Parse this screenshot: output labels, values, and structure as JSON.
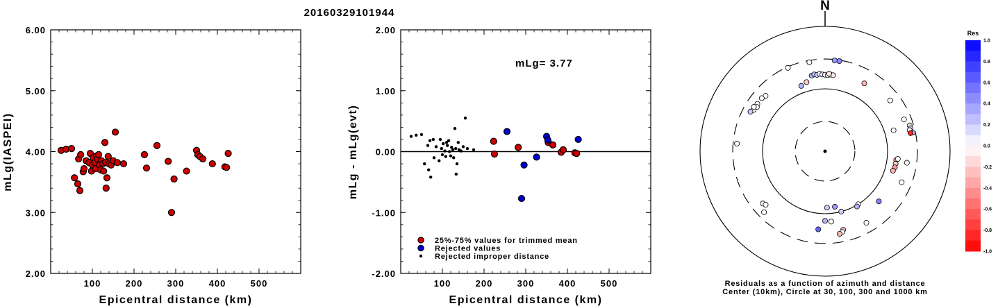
{
  "title": "20160329101944",
  "chart_data": [
    {
      "type": "scatter",
      "xlabel": "Epicentral distance (km)",
      "ylabel": "mLg(IASPEI)",
      "xlim": [
        0,
        600
      ],
      "ylim": [
        2.0,
        6.0
      ],
      "xticks": [
        "100",
        "200",
        "300",
        "400",
        "500"
      ],
      "yticks": [
        "2.00",
        "3.00",
        "4.00",
        "5.00",
        "6.00"
      ],
      "point_color": "#cc0000",
      "points": [
        [
          25,
          4.02
        ],
        [
          37,
          4.04
        ],
        [
          50,
          4.05
        ],
        [
          57,
          3.57
        ],
        [
          65,
          3.47
        ],
        [
          67,
          3.88
        ],
        [
          70,
          3.36
        ],
        [
          72,
          3.95
        ],
        [
          78,
          3.67
        ],
        [
          80,
          3.72
        ],
        [
          85,
          3.85
        ],
        [
          92,
          3.82
        ],
        [
          95,
          3.97
        ],
        [
          98,
          3.68
        ],
        [
          100,
          3.78
        ],
        [
          102,
          3.9
        ],
        [
          106,
          3.82
        ],
        [
          108,
          3.72
        ],
        [
          110,
          3.93
        ],
        [
          112,
          3.88
        ],
        [
          115,
          3.95
        ],
        [
          117,
          3.78
        ],
        [
          120,
          3.7
        ],
        [
          122,
          3.85
        ],
        [
          125,
          3.8
        ],
        [
          127,
          3.68
        ],
        [
          130,
          4.15
        ],
        [
          132,
          3.82
        ],
        [
          133,
          3.4
        ],
        [
          135,
          3.57
        ],
        [
          138,
          3.92
        ],
        [
          140,
          3.8
        ],
        [
          145,
          3.78
        ],
        [
          150,
          3.85
        ],
        [
          155,
          4.32
        ],
        [
          160,
          3.82
        ],
        [
          175,
          3.8
        ],
        [
          225,
          3.95
        ],
        [
          230,
          3.73
        ],
        [
          255,
          4.1
        ],
        [
          282,
          3.84
        ],
        [
          290,
          3.0
        ],
        [
          296,
          3.55
        ],
        [
          326,
          3.68
        ],
        [
          350,
          4.02
        ],
        [
          353,
          3.95
        ],
        [
          358,
          3.92
        ],
        [
          365,
          3.88
        ],
        [
          388,
          3.8
        ],
        [
          418,
          3.75
        ],
        [
          422,
          3.74
        ],
        [
          426,
          3.97
        ]
      ]
    },
    {
      "type": "scatter",
      "xlabel": "Epicentral distance (km)",
      "ylabel": "mLg - mLg(evt)",
      "xlim": [
        0,
        600
      ],
      "ylim": [
        -2.0,
        2.0
      ],
      "xticks": [
        "100",
        "200",
        "300",
        "400",
        "500"
      ],
      "yticks": [
        "-2.00",
        "-1.00",
        "0.00",
        "1.00",
        "2.00"
      ],
      "annotation": "mLg= 3.77",
      "reference_line": 0.0,
      "legend": [
        {
          "label": "25%-75% values for trimmed mean",
          "color": "#cc0000"
        },
        {
          "label": "Rejected values",
          "color": "#0000cc"
        },
        {
          "label": "Rejected improper distance",
          "color": "#000000"
        }
      ],
      "series": [
        {
          "name": "25%-75% values for trimmed mean",
          "color": "#cc0000",
          "size": "large",
          "points": [
            [
              223,
              0.17
            ],
            [
              225,
              -0.04
            ],
            [
              282,
              0.07
            ],
            [
              354,
              0.15
            ],
            [
              365,
              0.11
            ],
            [
              385,
              -0.01
            ],
            [
              390,
              0.03
            ],
            [
              418,
              -0.02
            ],
            [
              422,
              -0.03
            ]
          ]
        },
        {
          "name": "Rejected values",
          "color": "#0000cc",
          "size": "large",
          "points": [
            [
              255,
              0.33
            ],
            [
              290,
              -0.77
            ],
            [
              296,
              -0.22
            ],
            [
              326,
              -0.09
            ],
            [
              350,
              0.25
            ],
            [
              353,
              0.19
            ],
            [
              426,
              0.2
            ]
          ]
        },
        {
          "name": "Rejected improper distance",
          "color": "#000000",
          "size": "small",
          "points": [
            [
              25,
              0.25
            ],
            [
              37,
              0.27
            ],
            [
              50,
              0.28
            ],
            [
              57,
              -0.2
            ],
            [
              65,
              0.1
            ],
            [
              67,
              -0.3
            ],
            [
              70,
              0.18
            ],
            [
              72,
              -0.42
            ],
            [
              78,
              0.2
            ],
            [
              80,
              -0.1
            ],
            [
              85,
              0.08
            ],
            [
              92,
              -0.15
            ],
            [
              95,
              0.2
            ],
            [
              98,
              0.05
            ],
            [
              100,
              -0.05
            ],
            [
              102,
              0.13
            ],
            [
              106,
              0.01
            ],
            [
              108,
              -0.08
            ],
            [
              110,
              0.15
            ],
            [
              112,
              0.1
            ],
            [
              115,
              0.18
            ],
            [
              117,
              0.0
            ],
            [
              120,
              -0.07
            ],
            [
              122,
              0.07
            ],
            [
              125,
              0.03
            ],
            [
              127,
              -0.1
            ],
            [
              130,
              0.38
            ],
            [
              132,
              0.05
            ],
            [
              133,
              -0.37
            ],
            [
              135,
              -0.2
            ],
            [
              138,
              0.15
            ],
            [
              140,
              0.03
            ],
            [
              145,
              0.01
            ],
            [
              150,
              0.08
            ],
            [
              155,
              0.55
            ],
            [
              160,
              0.05
            ],
            [
              175,
              0.03
            ]
          ]
        }
      ]
    },
    {
      "type": "scatter",
      "subtype": "polar",
      "north_label": "N",
      "caption_line1": "Residuals as a function of azimuth and distance",
      "caption_line2": "Center (10km), Circle at 30, 100, 300 and 1000 km",
      "rings_km": [
        10,
        30,
        100,
        300,
        1000
      ],
      "colorbar_title": "Res",
      "colorbar_ticks": [
        "1.0",
        "0.8",
        "0.6",
        "0.4",
        "0.2",
        "0.0",
        "-0.2",
        "-0.4",
        "-0.6",
        "-0.8",
        "-1.0"
      ],
      "colorbar_range": [
        -1.0,
        1.0
      ],
      "points": [
        {
          "az": 9,
          "dist": 290,
          "res": 0.45
        },
        {
          "az": 6,
          "dist": 290,
          "res": 0.4
        },
        {
          "az": 350,
          "dist": 280,
          "res": 0.0
        },
        {
          "az": 336,
          "dist": 290,
          "res": 0.0
        },
        {
          "az": 350,
          "dist": 170,
          "res": 0.3
        },
        {
          "az": 352,
          "dist": 175,
          "res": 0.25
        },
        {
          "az": 354,
          "dist": 170,
          "res": 0.2
        },
        {
          "az": 356,
          "dist": 175,
          "res": 0.0
        },
        {
          "az": 358,
          "dist": 170,
          "res": 0.1
        },
        {
          "az": 0,
          "dist": 168,
          "res": 0.0
        },
        {
          "az": 2,
          "dist": 166,
          "res": 0.0
        },
        {
          "az": 4,
          "dist": 170,
          "res": 0.0
        },
        {
          "az": 6,
          "dist": 168,
          "res": -0.1
        },
        {
          "az": 3,
          "dist": 175,
          "res": -0.1
        },
        {
          "az": 345,
          "dist": 140,
          "res": -0.2
        },
        {
          "az": 340,
          "dist": 130,
          "res": 0.3
        },
        {
          "az": 313,
          "dist": 200,
          "res": 0.0
        },
        {
          "az": 310,
          "dist": 210,
          "res": 0.0
        },
        {
          "az": 305,
          "dist": 210,
          "res": 0.0
        },
        {
          "az": 303,
          "dist": 200,
          "res": 0.0
        },
        {
          "az": 300,
          "dist": 210,
          "res": 0.0
        },
        {
          "az": 302,
          "dist": 220,
          "res": 0.0
        },
        {
          "az": 298,
          "dist": 225,
          "res": 0.2
        },
        {
          "az": 275,
          "dist": 260,
          "res": 0.0
        },
        {
          "az": 30,
          "dist": 180,
          "res": -0.3
        },
        {
          "az": 52,
          "dist": 210,
          "res": 0.0
        },
        {
          "az": 68,
          "dist": 230,
          "res": 0.0
        },
        {
          "az": 73,
          "dist": 260,
          "res": -0.1
        },
        {
          "az": 75,
          "dist": 260,
          "res": 0.2
        },
        {
          "az": 76,
          "dist": 248,
          "res": 0.0
        },
        {
          "az": 78,
          "dist": 272,
          "res": 0.25
        },
        {
          "az": 78,
          "dist": 250,
          "res": -0.85
        },
        {
          "az": 73,
          "dist": 140,
          "res": 0.0
        },
        {
          "az": 97,
          "dist": 140,
          "res": -0.3
        },
        {
          "az": 100,
          "dist": 140,
          "res": -0.2
        },
        {
          "az": 96,
          "dist": 148,
          "res": 0.0
        },
        {
          "az": 103,
          "dist": 140,
          "res": -0.4
        },
        {
          "az": 106,
          "dist": 135,
          "res": -0.3
        },
        {
          "az": 98,
          "dist": 210,
          "res": 0.0
        },
        {
          "az": 112,
          "dist": 210,
          "res": 0.0
        },
        {
          "az": 170,
          "dist": 80,
          "res": 0.4
        },
        {
          "az": 178,
          "dist": 80,
          "res": 0.2
        },
        {
          "az": 165,
          "dist": 100,
          "res": 0.2
        },
        {
          "az": 148,
          "dist": 100,
          "res": 0.0
        },
        {
          "az": 150,
          "dist": 105,
          "res": 0.3
        },
        {
          "az": 180,
          "dist": 130,
          "res": 0.3
        },
        {
          "az": 175,
          "dist": 135,
          "res": 0.0
        },
        {
          "az": 133,
          "dist": 150,
          "res": 0.5
        },
        {
          "az": 185,
          "dist": 180,
          "res": 0.6
        },
        {
          "az": 167,
          "dist": 195,
          "res": -0.25
        },
        {
          "az": 168,
          "dist": 210,
          "res": 0.0
        },
        {
          "az": 170,
          "dist": 220,
          "res": -0.3
        },
        {
          "az": 150,
          "dist": 210,
          "res": 0.0
        },
        {
          "az": 230,
          "dist": 200,
          "res": 0.0
        },
        {
          "az": 225,
          "dist": 240,
          "res": 0.0
        },
        {
          "az": 228,
          "dist": 190,
          "res": 0.0
        }
      ]
    }
  ]
}
